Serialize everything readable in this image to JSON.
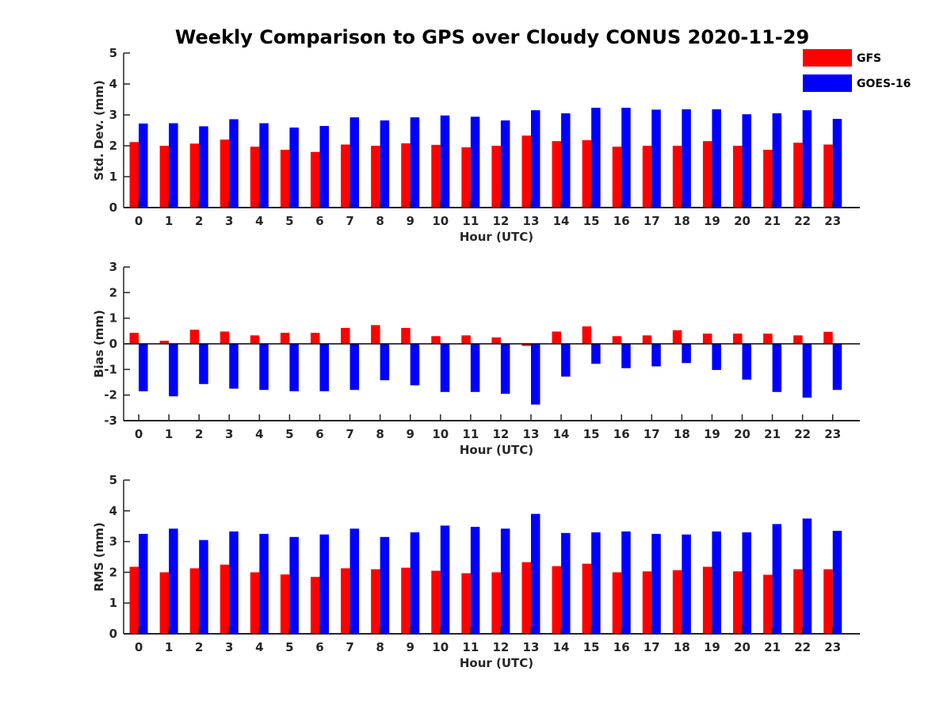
{
  "title": "Weekly Comparison to GPS over Cloudy CONUS 2020-11-29",
  "legend": {
    "placement": "top-right",
    "items": [
      {
        "label": "GFS",
        "color": "#ff0000"
      },
      {
        "label": "GOES-16",
        "color": "#0000ff"
      }
    ]
  },
  "chart_data": [
    {
      "type": "bar",
      "xlabel": "Hour (UTC)",
      "ylabel": "Std. Dev. (mm)",
      "ylim": [
        0,
        5
      ],
      "yticks": [
        "0",
        "1",
        "2",
        "3",
        "4",
        "5"
      ],
      "categories": [
        "0",
        "1",
        "2",
        "3",
        "4",
        "5",
        "6",
        "7",
        "8",
        "9",
        "10",
        "11",
        "12",
        "13",
        "14",
        "15",
        "16",
        "17",
        "18",
        "19",
        "20",
        "21",
        "22",
        "23"
      ],
      "series": [
        {
          "name": "GFS",
          "color": "#ff0000",
          "values": [
            2.12,
            2.0,
            2.07,
            2.2,
            1.97,
            1.87,
            1.8,
            2.04,
            2.0,
            2.08,
            2.03,
            1.95,
            2.0,
            2.33,
            2.15,
            2.18,
            1.97,
            2.0,
            2.0,
            2.15,
            2.0,
            1.87,
            2.1,
            2.04
          ]
        },
        {
          "name": "GOES-16",
          "color": "#0000ff",
          "values": [
            2.72,
            2.73,
            2.63,
            2.86,
            2.73,
            2.59,
            2.64,
            2.92,
            2.82,
            2.92,
            2.98,
            2.94,
            2.82,
            3.15,
            3.05,
            3.23,
            3.23,
            3.17,
            3.18,
            3.18,
            3.02,
            3.05,
            3.15,
            2.87
          ]
        }
      ]
    },
    {
      "type": "bar",
      "xlabel": "Hour (UTC)",
      "ylabel": "Bias (mm)",
      "ylim": [
        -3,
        3
      ],
      "yticks": [
        "-3",
        "-2",
        "-1",
        "0",
        "1",
        "2",
        "3"
      ],
      "categories": [
        "0",
        "1",
        "2",
        "3",
        "4",
        "5",
        "6",
        "7",
        "8",
        "9",
        "10",
        "11",
        "12",
        "13",
        "14",
        "15",
        "16",
        "17",
        "18",
        "19",
        "20",
        "21",
        "22",
        "23"
      ],
      "series": [
        {
          "name": "GFS",
          "color": "#ff0000",
          "values": [
            0.43,
            0.12,
            0.55,
            0.48,
            0.33,
            0.43,
            0.43,
            0.62,
            0.73,
            0.62,
            0.3,
            0.33,
            0.25,
            -0.08,
            0.48,
            0.68,
            0.3,
            0.33,
            0.53,
            0.4,
            0.4,
            0.4,
            0.33,
            0.47
          ]
        },
        {
          "name": "GOES-16",
          "color": "#0000ff",
          "values": [
            -1.85,
            -2.05,
            -1.57,
            -1.75,
            -1.8,
            -1.85,
            -1.85,
            -1.8,
            -1.42,
            -1.62,
            -1.88,
            -1.88,
            -1.95,
            -2.37,
            -1.28,
            -0.78,
            -0.95,
            -0.88,
            -0.75,
            -1.02,
            -1.4,
            -1.88,
            -2.1,
            -1.8
          ]
        }
      ]
    },
    {
      "type": "bar",
      "xlabel": "Hour (UTC)",
      "ylabel": "RMS (mm)",
      "ylim": [
        0,
        5
      ],
      "yticks": [
        "0",
        "1",
        "2",
        "3",
        "4",
        "5"
      ],
      "categories": [
        "0",
        "1",
        "2",
        "3",
        "4",
        "5",
        "6",
        "7",
        "8",
        "9",
        "10",
        "11",
        "12",
        "13",
        "14",
        "15",
        "16",
        "17",
        "18",
        "19",
        "20",
        "21",
        "22",
        "23"
      ],
      "series": [
        {
          "name": "GFS",
          "color": "#ff0000",
          "values": [
            2.18,
            2.0,
            2.13,
            2.25,
            2.0,
            1.93,
            1.85,
            2.13,
            2.1,
            2.15,
            2.05,
            1.97,
            2.0,
            2.33,
            2.2,
            2.28,
            2.0,
            2.03,
            2.07,
            2.18,
            2.03,
            1.92,
            2.1,
            2.1
          ]
        },
        {
          "name": "GOES-16",
          "color": "#0000ff",
          "values": [
            3.25,
            3.42,
            3.05,
            3.33,
            3.25,
            3.15,
            3.23,
            3.42,
            3.15,
            3.3,
            3.52,
            3.48,
            3.42,
            3.9,
            3.28,
            3.3,
            3.33,
            3.25,
            3.23,
            3.33,
            3.3,
            3.57,
            3.75,
            3.35
          ]
        }
      ]
    }
  ]
}
